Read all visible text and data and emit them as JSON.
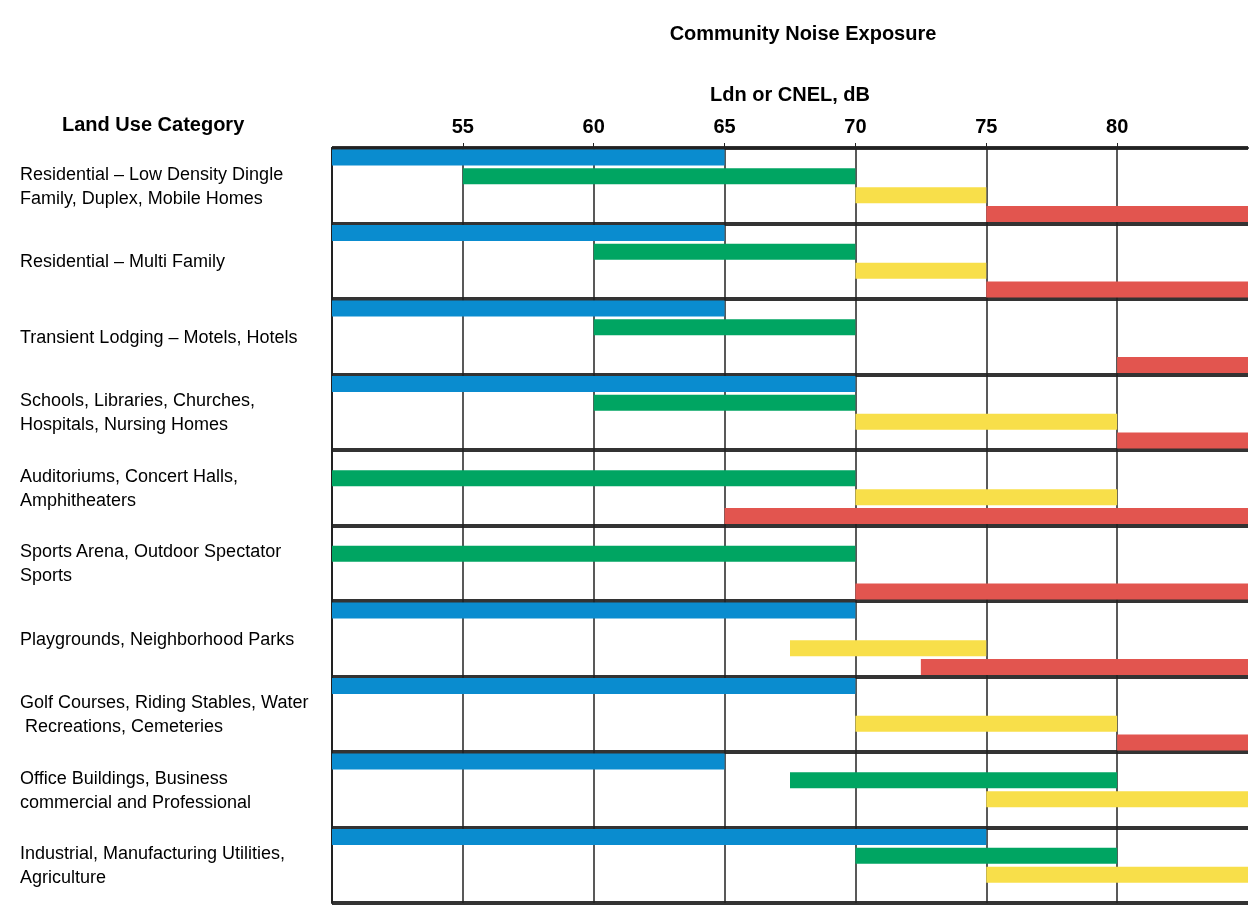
{
  "chart_data": {
    "type": "bar",
    "orientation": "horizontal",
    "title": "Community Noise Exposure",
    "xlabel": "Ldn or CNEL, dB",
    "ylabel": "Land Use Category",
    "categories": [
      "Residential – Low Density Dingle Family, Duplex, Mobile Homes",
      "Residential – Multi Family",
      "Transient Lodging – Motels, Hotels",
      "Schools, Libraries, Churches, Hospitals, Nursing Homes",
      "Auditoriums, Concert Halls, Amphitheaters",
      "Sports Arena, Outdoor Spectator Sports",
      "Playgrounds, Neighborhood Parks",
      "Golf Courses, Riding Stables, Water Recreations, Cemeteries",
      "Office Buildings, Business commercial and Professional",
      "Industrial, Manufacturing Utilities, Agriculture"
    ],
    "series": [
      {
        "color": "#0a8ccf",
        "base": [
          50,
          50,
          50,
          50,
          null,
          null,
          50,
          50,
          50,
          50
        ],
        "values": [
          15,
          15,
          15,
          20,
          null,
          null,
          20,
          20,
          15,
          25
        ]
      },
      {
        "color": "#00a562",
        "base": [
          55,
          60,
          60,
          60,
          50,
          50,
          null,
          null,
          67.5,
          70
        ],
        "values": [
          15,
          10,
          10,
          10,
          20,
          20,
          null,
          null,
          12.5,
          10
        ]
      },
      {
        "color": "#f8df4a",
        "base": [
          70,
          70,
          null,
          70,
          70,
          null,
          67.5,
          70,
          75,
          75
        ],
        "values": [
          5,
          5,
          null,
          10,
          10,
          null,
          7.5,
          10,
          10,
          10
        ]
      },
      {
        "color": "#e2554f",
        "base": [
          75,
          75,
          80,
          80,
          65,
          70,
          72.5,
          80,
          null,
          null
        ],
        "values": [
          10,
          10,
          5,
          5,
          20,
          15,
          12.5,
          5,
          null,
          null
        ]
      }
    ],
    "xlim": [
      50,
      85
    ],
    "xticks": [
      55,
      60,
      65,
      70,
      75,
      80
    ],
    "grid": true
  }
}
